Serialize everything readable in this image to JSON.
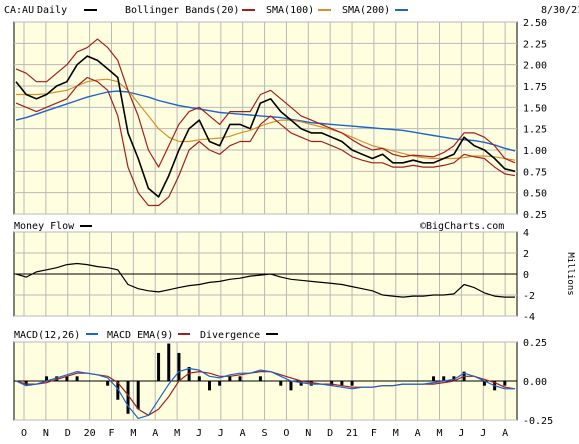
{
  "header": {
    "symbol": "CA:AU",
    "period": "Daily",
    "legend": [
      {
        "label": "Bollinger Bands(20)",
        "color": "#a02020"
      },
      {
        "label": "SMA(100)",
        "color": "#d4902a"
      },
      {
        "label": "SMA(200)",
        "color": "#1e64c8"
      }
    ],
    "date": "8/30/21"
  },
  "watermark": "©BigCharts.com",
  "colors": {
    "background": "#ffffe0",
    "grid": "#b8b8b8",
    "price": "#000000",
    "bollinger": "#a02020",
    "sma100": "#d4902a",
    "sma200": "#1e64c8",
    "macd": "#1e64c8",
    "macd_ema": "#a02020",
    "divergence": "#000000"
  },
  "chart_data": [
    {
      "type": "line",
      "name": "price",
      "ylim": [
        0.25,
        2.5
      ],
      "yticks": [
        "2.50",
        "2.25",
        "2.00",
        "1.75",
        "1.50",
        "1.25",
        "1.00",
        "0.75",
        "0.50",
        "0.25"
      ],
      "months": [
        "O",
        "N",
        "D",
        "20",
        "F",
        "M",
        "A",
        "M",
        "J",
        "J",
        "A",
        "S",
        "O",
        "N",
        "D",
        "21",
        "F",
        "M",
        "A",
        "M",
        "J",
        "J",
        "A"
      ],
      "series": [
        {
          "name": "Price",
          "values": [
            1.8,
            1.65,
            1.6,
            1.65,
            1.75,
            1.8,
            2.0,
            2.1,
            2.05,
            1.95,
            1.85,
            1.2,
            0.9,
            0.55,
            0.45,
            0.7,
            1.0,
            1.25,
            1.35,
            1.1,
            1.05,
            1.3,
            1.3,
            1.25,
            1.55,
            1.6,
            1.45,
            1.35,
            1.25,
            1.2,
            1.2,
            1.15,
            1.1,
            1.0,
            0.95,
            0.9,
            0.95,
            0.85,
            0.85,
            0.88,
            0.85,
            0.85,
            0.9,
            0.95,
            1.15,
            1.05,
            1.0,
            0.9,
            0.78,
            0.75
          ]
        },
        {
          "name": "Bollinger Bands(20) upper",
          "values": [
            1.95,
            1.9,
            1.8,
            1.8,
            1.9,
            2.0,
            2.15,
            2.2,
            2.3,
            2.2,
            2.05,
            1.7,
            1.4,
            1.0,
            0.8,
            1.05,
            1.3,
            1.45,
            1.5,
            1.4,
            1.3,
            1.45,
            1.45,
            1.45,
            1.65,
            1.7,
            1.6,
            1.5,
            1.4,
            1.35,
            1.3,
            1.25,
            1.2,
            1.12,
            1.05,
            1.0,
            1.02,
            0.95,
            0.92,
            0.94,
            0.93,
            0.92,
            0.97,
            1.05,
            1.2,
            1.2,
            1.15,
            1.05,
            0.9,
            0.85
          ]
        },
        {
          "name": "Bollinger Bands(20) lower",
          "values": [
            1.55,
            1.5,
            1.45,
            1.5,
            1.55,
            1.6,
            1.75,
            1.85,
            1.8,
            1.7,
            1.4,
            0.8,
            0.5,
            0.35,
            0.35,
            0.45,
            0.7,
            1.0,
            1.1,
            1.0,
            0.95,
            1.05,
            1.1,
            1.1,
            1.3,
            1.4,
            1.3,
            1.2,
            1.15,
            1.1,
            1.1,
            1.05,
            1.0,
            0.92,
            0.88,
            0.85,
            0.85,
            0.8,
            0.8,
            0.82,
            0.8,
            0.8,
            0.82,
            0.85,
            0.95,
            0.92,
            0.9,
            0.8,
            0.72,
            0.7
          ]
        },
        {
          "name": "SMA(100)",
          "values": [
            1.65,
            1.65,
            1.65,
            1.66,
            1.68,
            1.7,
            1.75,
            1.8,
            1.82,
            1.83,
            1.8,
            1.7,
            1.55,
            1.4,
            1.25,
            1.15,
            1.1,
            1.1,
            1.12,
            1.13,
            1.14,
            1.16,
            1.2,
            1.23,
            1.28,
            1.32,
            1.35,
            1.35,
            1.33,
            1.3,
            1.27,
            1.24,
            1.2,
            1.15,
            1.1,
            1.05,
            1.02,
            0.99,
            0.96,
            0.93,
            0.91,
            0.9,
            0.9,
            0.9,
            0.91,
            0.93,
            0.93,
            0.92,
            0.9,
            0.88
          ]
        },
        {
          "name": "SMA(200)",
          "values": [
            1.35,
            1.38,
            1.42,
            1.46,
            1.5,
            1.54,
            1.58,
            1.62,
            1.65,
            1.68,
            1.69,
            1.68,
            1.65,
            1.62,
            1.58,
            1.55,
            1.52,
            1.5,
            1.48,
            1.46,
            1.44,
            1.43,
            1.42,
            1.41,
            1.4,
            1.39,
            1.38,
            1.36,
            1.34,
            1.32,
            1.31,
            1.3,
            1.29,
            1.28,
            1.27,
            1.26,
            1.25,
            1.24,
            1.23,
            1.21,
            1.19,
            1.17,
            1.15,
            1.13,
            1.12,
            1.11,
            1.09,
            1.06,
            1.02,
            0.99
          ]
        }
      ]
    },
    {
      "type": "line",
      "title": "Money Flow",
      "ylabel": "Millions",
      "ylim": [
        -4,
        4
      ],
      "yticks": [
        "4",
        "2",
        "0",
        "-2",
        "-4"
      ],
      "series": [
        {
          "name": "Money Flow",
          "values": [
            0,
            -0.3,
            0.2,
            0.4,
            0.6,
            0.9,
            1.0,
            0.9,
            0.7,
            0.6,
            0.4,
            -1.0,
            -1.4,
            -1.6,
            -1.7,
            -1.5,
            -1.3,
            -1.1,
            -1.0,
            -0.8,
            -0.7,
            -0.5,
            -0.4,
            -0.2,
            -0.1,
            0.0,
            -0.3,
            -0.5,
            -0.6,
            -0.7,
            -0.8,
            -0.9,
            -1.0,
            -1.2,
            -1.4,
            -1.6,
            -2.0,
            -2.1,
            -2.2,
            -2.1,
            -2.1,
            -2.0,
            -2.0,
            -1.9,
            -1.0,
            -1.3,
            -1.8,
            -2.1,
            -2.2,
            -2.2
          ]
        }
      ]
    },
    {
      "type": "line",
      "ylim": [
        -0.25,
        0.25
      ],
      "yticks": [
        "0.25",
        "0.00",
        "-0.25"
      ],
      "legend": [
        {
          "label": "MACD(12,26)",
          "color": "#000000"
        },
        {
          "label": "MACD EMA(9)",
          "color": "#1e64c8"
        },
        {
          "label": "Divergence",
          "color": "#a02020"
        }
      ],
      "series": [
        {
          "name": "MACD(12,26)",
          "values": [
            0.0,
            -0.03,
            -0.02,
            0.0,
            0.02,
            0.04,
            0.06,
            0.05,
            0.04,
            0.02,
            -0.05,
            -0.16,
            -0.24,
            -0.22,
            -0.12,
            -0.02,
            0.06,
            0.08,
            0.07,
            0.03,
            0.02,
            0.04,
            0.05,
            0.05,
            0.07,
            0.06,
            0.03,
            0.0,
            -0.01,
            -0.02,
            -0.02,
            -0.03,
            -0.04,
            -0.05,
            -0.04,
            -0.04,
            -0.03,
            -0.03,
            -0.02,
            -0.02,
            -0.02,
            -0.01,
            0.0,
            0.01,
            0.05,
            0.03,
            0.0,
            -0.03,
            -0.05,
            -0.05
          ]
        },
        {
          "name": "MACD EMA(9)",
          "values": [
            0.0,
            -0.02,
            -0.02,
            -0.01,
            0.01,
            0.03,
            0.05,
            0.05,
            0.04,
            0.03,
            -0.01,
            -0.09,
            -0.18,
            -0.22,
            -0.18,
            -0.1,
            0.0,
            0.05,
            0.06,
            0.05,
            0.03,
            0.03,
            0.04,
            0.05,
            0.06,
            0.06,
            0.04,
            0.02,
            0.0,
            -0.01,
            -0.02,
            -0.02,
            -0.03,
            -0.04,
            -0.04,
            -0.04,
            -0.03,
            -0.03,
            -0.02,
            -0.02,
            -0.02,
            -0.02,
            -0.01,
            0.0,
            0.03,
            0.03,
            0.01,
            -0.01,
            -0.04,
            -0.05
          ]
        }
      ]
    }
  ]
}
